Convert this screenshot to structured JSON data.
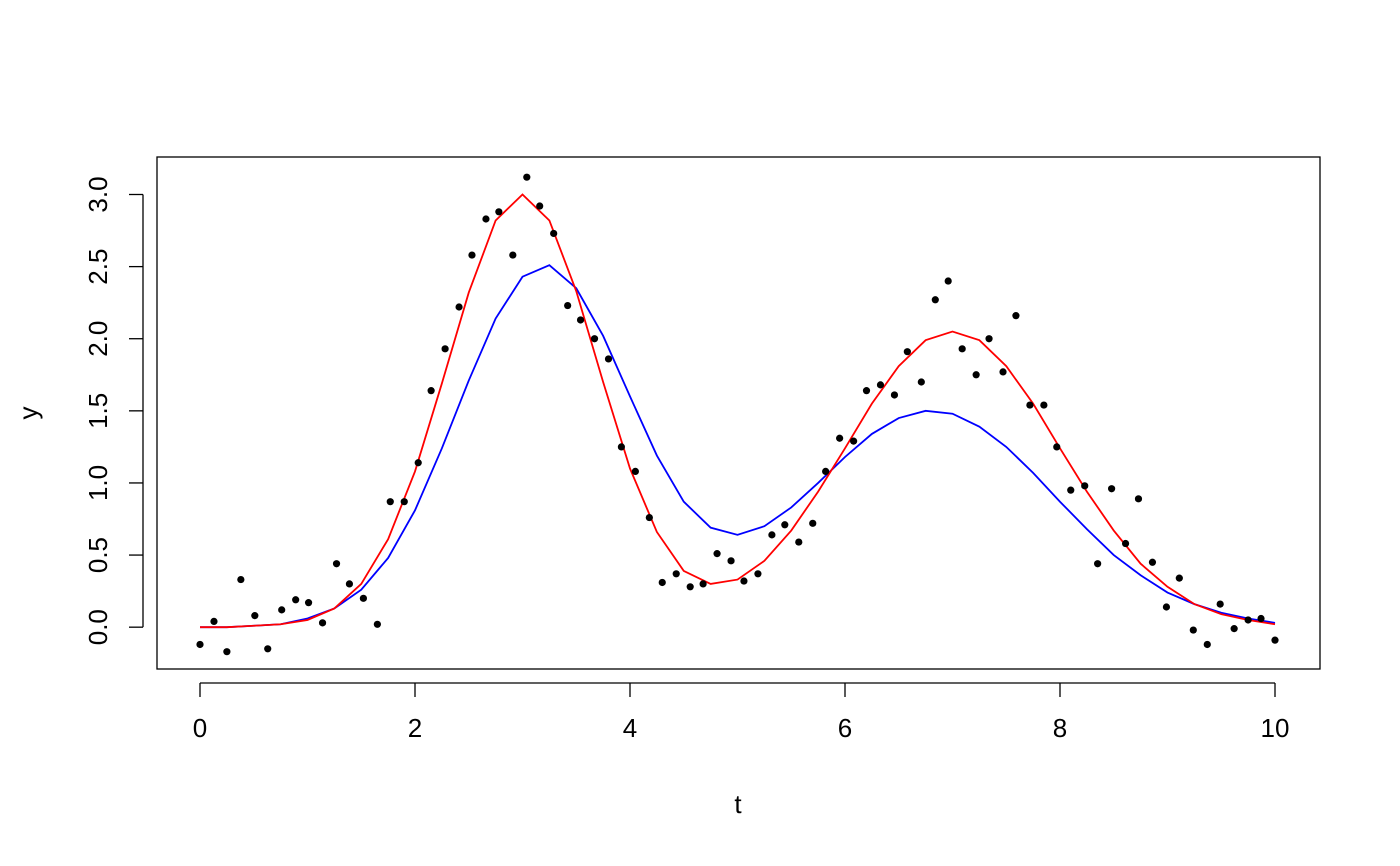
{
  "chart_data": {
    "type": "scatter",
    "xlabel": "t",
    "ylabel": "y",
    "xlim": [
      -0.4,
      10.4
    ],
    "ylim": [
      -0.29,
      3.26
    ],
    "xticks": [
      0,
      2,
      4,
      6,
      8,
      10
    ],
    "yticks": [
      {
        "value": 0,
        "label": "0.0"
      },
      {
        "value": 0.5,
        "label": "0.5"
      },
      {
        "value": 1,
        "label": "1.0"
      },
      {
        "value": 1.5,
        "label": "1.5"
      },
      {
        "value": 2,
        "label": "2.0"
      },
      {
        "value": 2.5,
        "label": "2.5"
      },
      {
        "value": 3,
        "label": "3.0"
      }
    ],
    "color": "#000000",
    "x": [
      0,
      0.13,
      0.25,
      0.38,
      0.51,
      0.63,
      0.76,
      0.89,
      1.01,
      1.14,
      1.27,
      1.39,
      1.52,
      1.65,
      1.77,
      1.9,
      2.03,
      2.15,
      2.28,
      2.41,
      2.53,
      2.66,
      2.78,
      2.91,
      3.04,
      3.16,
      3.29,
      3.42,
      3.54,
      3.67,
      3.8,
      3.92,
      4.05,
      4.18,
      4.3,
      4.43,
      4.56,
      4.68,
      4.81,
      4.94,
      5.06,
      5.19,
      5.32,
      5.44,
      5.57,
      5.7,
      5.82,
      5.95,
      6.08,
      6.2,
      6.33,
      6.46,
      6.58,
      6.71,
      6.84,
      6.96,
      7.09,
      7.22,
      7.34,
      7.47,
      7.59,
      7.72,
      7.85,
      7.97,
      8.1,
      8.23,
      8.35,
      8.48,
      8.61,
      8.73,
      8.86,
      8.99,
      9.11,
      9.24,
      9.37,
      9.49,
      9.62,
      9.75,
      9.87,
      10
    ],
    "values": [
      -0.12,
      0.04,
      -0.17,
      0.33,
      0.08,
      -0.15,
      0.12,
      0.19,
      0.17,
      0.03,
      0.44,
      0.3,
      0.2,
      0.02,
      0.87,
      0.87,
      1.14,
      1.64,
      1.93,
      2.22,
      2.58,
      2.83,
      2.88,
      2.58,
      3.12,
      2.92,
      2.73,
      2.23,
      2.13,
      2,
      1.86,
      1.25,
      1.08,
      0.76,
      0.31,
      0.37,
      0.28,
      0.3,
      0.51,
      0.46,
      0.32,
      0.37,
      0.64,
      0.71,
      0.59,
      0.72,
      1.08,
      1.31,
      1.29,
      1.64,
      1.68,
      1.61,
      1.91,
      1.7,
      2.27,
      2.4,
      1.93,
      1.75,
      2,
      1.77,
      2.16,
      1.54,
      1.54,
      1.25,
      0.95,
      0.98,
      0.44,
      0.96,
      0.58,
      0.89,
      0.45,
      0.14,
      0.34,
      -0.02,
      -0.12,
      0.16,
      -0.01,
      0.05,
      0.06,
      -0.09
    ],
    "series": [
      {
        "type": "line",
        "color": "#0000ff",
        "x": [
          0,
          0.25,
          0.5,
          0.75,
          1,
          1.25,
          1.5,
          1.75,
          2,
          2.25,
          2.5,
          2.75,
          3,
          3.25,
          3.5,
          3.75,
          4,
          4.25,
          4.5,
          4.75,
          5,
          5.25,
          5.5,
          5.75,
          6,
          6.25,
          6.5,
          6.75,
          7,
          7.25,
          7.5,
          7.75,
          8,
          8.25,
          8.5,
          8.75,
          9,
          9.25,
          9.5,
          9.75,
          10
        ],
        "values": [
          0,
          0,
          0.01,
          0.02,
          0.06,
          0.13,
          0.26,
          0.48,
          0.81,
          1.24,
          1.71,
          2.14,
          2.43,
          2.51,
          2.35,
          2.02,
          1.6,
          1.19,
          0.87,
          0.69,
          0.64,
          0.7,
          0.83,
          1,
          1.18,
          1.34,
          1.45,
          1.5,
          1.48,
          1.39,
          1.25,
          1.07,
          0.87,
          0.68,
          0.5,
          0.36,
          0.24,
          0.16,
          0.1,
          0.06,
          0.03
        ]
      },
      {
        "type": "line",
        "color": "#ff0000",
        "x": [
          0,
          0.25,
          0.5,
          0.75,
          1,
          1.25,
          1.5,
          1.75,
          2,
          2.25,
          2.5,
          2.75,
          3,
          3.25,
          3.5,
          3.75,
          4,
          4.25,
          4.5,
          4.75,
          5,
          5.25,
          5.5,
          5.75,
          6,
          6.25,
          6.5,
          6.75,
          7,
          7.25,
          7.5,
          7.75,
          8,
          8.25,
          8.5,
          8.75,
          9,
          9.25,
          9.5,
          9.75,
          10
        ],
        "values": [
          0,
          0,
          0.01,
          0.02,
          0.05,
          0.13,
          0.3,
          0.61,
          1.08,
          1.69,
          2.32,
          2.82,
          3,
          2.82,
          2.33,
          1.7,
          1.1,
          0.66,
          0.39,
          0.3,
          0.33,
          0.46,
          0.67,
          0.94,
          1.24,
          1.55,
          1.81,
          1.99,
          2.05,
          1.99,
          1.81,
          1.55,
          1.24,
          0.94,
          0.67,
          0.44,
          0.28,
          0.16,
          0.09,
          0.05,
          0.02
        ]
      }
    ]
  }
}
